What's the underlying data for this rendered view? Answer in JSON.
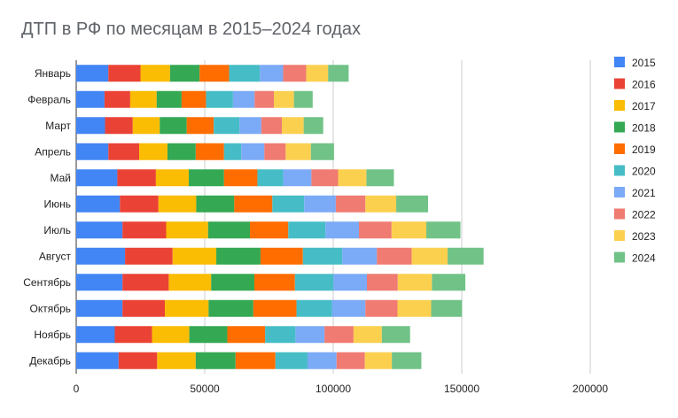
{
  "chart_data": {
    "type": "bar",
    "orientation": "horizontal",
    "stacked": true,
    "title": "ДТП в РФ по месяцам в 2015–2024 годах",
    "xlabel": "",
    "ylabel": "",
    "xlim": [
      0,
      200000
    ],
    "x_ticks": [
      0,
      50000,
      100000,
      150000,
      200000
    ],
    "x_tick_labels": [
      "0",
      "50000",
      "100000",
      "150000",
      "200000"
    ],
    "grid": true,
    "legend_position": "right",
    "categories": [
      "Январь",
      "Февраль",
      "Март",
      "Апрель",
      "Май",
      "Июнь",
      "Июль",
      "Август",
      "Сентябрь",
      "Октябрь",
      "Ноябрь",
      "Декабрь"
    ],
    "series": [
      {
        "name": "2015",
        "color": "#4285f4",
        "values": [
          12500,
          11000,
          11200,
          12500,
          16000,
          17000,
          18000,
          19000,
          18000,
          18000,
          15000,
          16500
        ]
      },
      {
        "name": "2016",
        "color": "#ea4335",
        "values": [
          12500,
          10000,
          10800,
          12000,
          15000,
          15000,
          17000,
          18500,
          18000,
          16500,
          14500,
          15000
        ]
      },
      {
        "name": "2017",
        "color": "#fbbc04",
        "values": [
          11500,
          10300,
          10500,
          11000,
          12800,
          14700,
          16300,
          17000,
          16500,
          17000,
          14500,
          15000
        ]
      },
      {
        "name": "2018",
        "color": "#34a853",
        "values": [
          11500,
          9700,
          10500,
          11000,
          13700,
          14800,
          16300,
          17200,
          16800,
          17400,
          14800,
          15500
        ]
      },
      {
        "name": "2019",
        "color": "#ff6d01",
        "values": [
          11500,
          9500,
          10500,
          11000,
          13000,
          14800,
          14900,
          16500,
          15800,
          16800,
          14700,
          15500
        ]
      },
      {
        "name": "2020",
        "color": "#46bdc6",
        "values": [
          12000,
          10500,
          10000,
          6700,
          10000,
          12400,
          14500,
          15300,
          15000,
          13800,
          11800,
          12500
        ]
      },
      {
        "name": "2021",
        "color": "#7baaf7",
        "values": [
          9000,
          8400,
          8500,
          9000,
          11000,
          12300,
          13000,
          13500,
          13000,
          13000,
          11300,
          11300
        ]
      },
      {
        "name": "2022",
        "color": "#f07b72",
        "values": [
          9000,
          7500,
          8000,
          8300,
          10400,
          11500,
          12700,
          13500,
          12000,
          12500,
          11300,
          11000
        ]
      },
      {
        "name": "2023",
        "color": "#fcd04f",
        "values": [
          8500,
          7800,
          8500,
          9800,
          11000,
          12000,
          13500,
          14000,
          13300,
          13100,
          11000,
          10500
        ]
      },
      {
        "name": "2024",
        "color": "#71c287",
        "values": [
          8000,
          7300,
          7600,
          9000,
          10700,
          12400,
          13300,
          14000,
          13000,
          12000,
          11000,
          11500
        ]
      }
    ]
  }
}
